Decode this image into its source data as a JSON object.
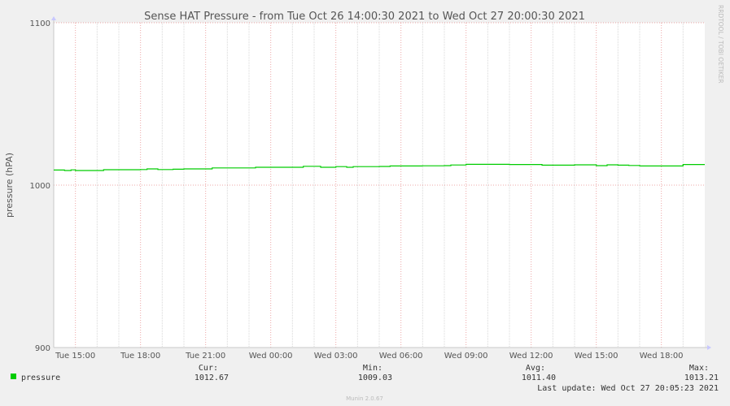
{
  "chart_data": {
    "type": "line",
    "title": "Sense HAT Pressure - from Tue Oct 26 14:00:30 2021 to Wed Oct 27 20:00:30 2021",
    "ylabel": "pressure (hPA)",
    "xlabel": "",
    "ylim": [
      900,
      1100
    ],
    "yticks": [
      900,
      1000,
      1100
    ],
    "xlim_hours": [
      0,
      30
    ],
    "x_tick_labels": [
      "Tue 15:00",
      "Tue 18:00",
      "Tue 21:00",
      "Wed 00:00",
      "Wed 03:00",
      "Wed 06:00",
      "Wed 09:00",
      "Wed 12:00",
      "Wed 15:00",
      "Wed 18:00"
    ],
    "x_tick_hours": [
      1,
      4,
      7,
      10,
      13,
      16,
      19,
      22,
      25,
      28
    ],
    "grid": true,
    "series": [
      {
        "name": "pressure",
        "color": "#00cc00",
        "x": [
          0,
          0.5,
          0.8,
          1,
          2,
          2.3,
          3,
          4,
          4.3,
          4.8,
          5.5,
          6,
          7,
          7.3,
          8,
          9,
          9.3,
          10,
          10.5,
          11.5,
          12,
          12.3,
          13,
          13.5,
          13.8,
          14,
          15,
          15.5,
          16,
          17,
          18,
          18.3,
          19,
          20,
          21,
          22,
          22.5,
          23,
          24,
          25,
          25.5,
          26,
          26.5,
          27,
          28,
          29,
          30
        ],
        "y": [
          1009.3,
          1009.0,
          1009.4,
          1009.0,
          1009.0,
          1009.5,
          1009.5,
          1009.6,
          1010.0,
          1009.6,
          1009.8,
          1010.0,
          1010.0,
          1010.6,
          1010.6,
          1010.6,
          1011.0,
          1011.0,
          1011.0,
          1011.6,
          1011.6,
          1011.0,
          1011.4,
          1011.0,
          1011.4,
          1011.4,
          1011.5,
          1011.8,
          1011.8,
          1011.9,
          1012.0,
          1012.4,
          1012.8,
          1012.8,
          1012.7,
          1012.7,
          1012.3,
          1012.3,
          1012.5,
          1012.0,
          1012.5,
          1012.3,
          1012.1,
          1011.8,
          1011.8,
          1012.7,
          1012.7
        ]
      }
    ],
    "legend": {
      "name": "pressure",
      "cur_label": "Cur:",
      "cur_value": "1012.67",
      "min_label": "Min:",
      "min_value": "1009.03",
      "avg_label": "Avg:",
      "avg_value": "1011.40",
      "max_label": "Max:",
      "max_value": "1013.21"
    },
    "last_update": "Last update: Wed Oct 27 20:05:23 2021",
    "watermark": "RRDTOOL / TOBI OETIKER",
    "footer": "Munin 2.0.67",
    "colors": {
      "background": "#f0f0f0",
      "plot_background": "#ffffff",
      "major_grid": "#e06060",
      "minor_grid": "#d8d8d8",
      "axis": "#c8c8c8",
      "text": "#555555"
    }
  }
}
